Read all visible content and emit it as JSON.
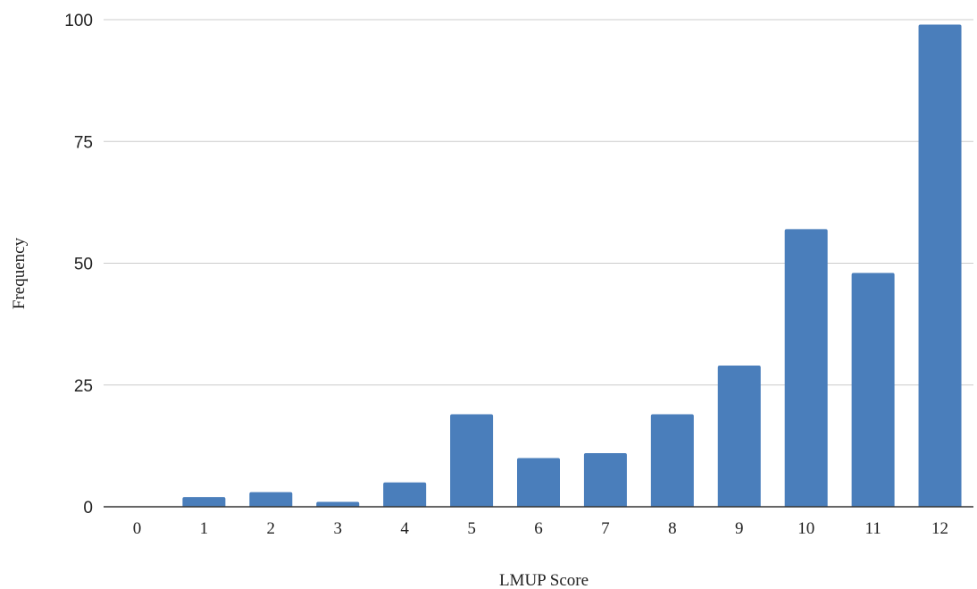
{
  "chart_data": {
    "type": "bar",
    "categories": [
      "0",
      "1",
      "2",
      "3",
      "4",
      "5",
      "6",
      "7",
      "8",
      "9",
      "10",
      "11",
      "12"
    ],
    "values": [
      0,
      2,
      3,
      1,
      5,
      19,
      10,
      11,
      19,
      29,
      57,
      48,
      99
    ],
    "xlabel": "LMUP Score",
    "ylabel": "Frequency",
    "ylim": [
      0,
      100
    ],
    "yticks": [
      0,
      25,
      50,
      75,
      100
    ],
    "grid": true,
    "bar_color": "#4a7ebb"
  }
}
